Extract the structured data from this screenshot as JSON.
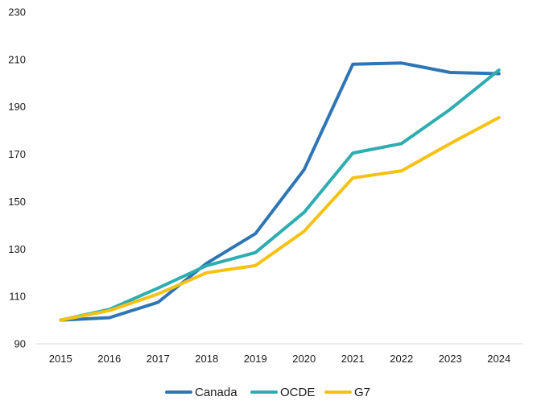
{
  "chart_data": {
    "type": "line",
    "title": "",
    "xlabel": "",
    "ylabel": "",
    "categories": [
      "2015",
      "2016",
      "2017",
      "2018",
      "2019",
      "2020",
      "2021",
      "2022",
      "2023",
      "2024"
    ],
    "ylim": [
      90,
      230
    ],
    "yticks": [
      "90",
      "110",
      "130",
      "150",
      "170",
      "190",
      "210",
      "230"
    ],
    "grid": false,
    "legend_position": "bottom",
    "series": [
      {
        "name": "Canada",
        "color": "#2E75B6",
        "values": [
          100,
          101,
          107.5,
          124,
          136.5,
          163.5,
          208,
          208.5,
          204.5,
          204
        ]
      },
      {
        "name": "OCDE",
        "color": "#2EADB0",
        "values": [
          100,
          104.5,
          113.5,
          123,
          128.5,
          145.5,
          170.5,
          174.5,
          189,
          205.5
        ]
      },
      {
        "name": "G7",
        "color": "#F5C214",
        "values": [
          100,
          104,
          111,
          120,
          123,
          137.5,
          160,
          163,
          174.5,
          185.5
        ]
      }
    ]
  }
}
